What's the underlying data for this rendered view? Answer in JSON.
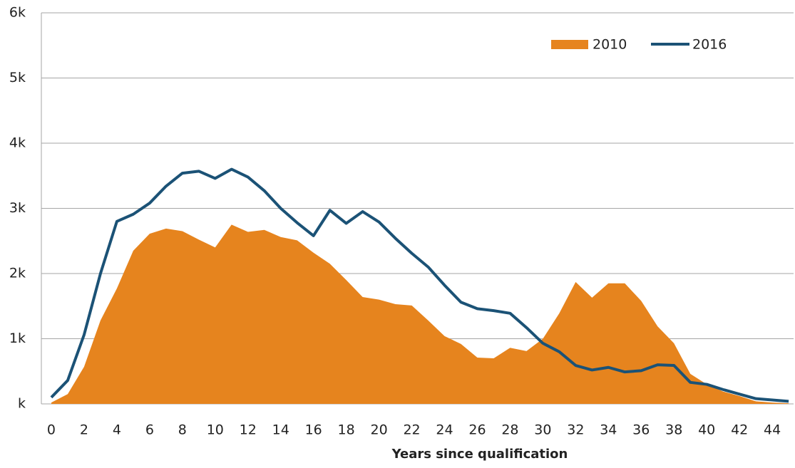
{
  "chart_data": {
    "type": "line",
    "x_label": "Years since qualification",
    "x": [
      0,
      1,
      2,
      3,
      4,
      5,
      6,
      7,
      8,
      9,
      10,
      11,
      12,
      13,
      14,
      15,
      16,
      17,
      18,
      19,
      20,
      21,
      22,
      23,
      24,
      25,
      26,
      27,
      28,
      29,
      30,
      31,
      32,
      33,
      34,
      35,
      36,
      37,
      38,
      39,
      40,
      41,
      42,
      43,
      44,
      45
    ],
    "series": [
      {
        "name": "2010",
        "type": "area",
        "color": "#e6841e",
        "values": [
          20,
          150,
          570,
          1280,
          1770,
          2350,
          2610,
          2690,
          2650,
          2520,
          2400,
          2750,
          2640,
          2670,
          2560,
          2510,
          2320,
          2150,
          1900,
          1640,
          1600,
          1530,
          1510,
          1280,
          1040,
          920,
          710,
          700,
          860,
          810,
          1000,
          1390,
          1870,
          1630,
          1850,
          1850,
          1580,
          1190,
          930,
          460,
          300,
          190,
          120,
          40,
          20,
          10
        ]
      },
      {
        "name": "2016",
        "type": "line",
        "color": "#1b5276",
        "values": [
          100,
          360,
          1060,
          2000,
          2800,
          2910,
          3080,
          3340,
          3540,
          3570,
          3460,
          3600,
          3480,
          3270,
          3000,
          2780,
          2580,
          2970,
          2770,
          2950,
          2790,
          2540,
          2310,
          2100,
          1820,
          1560,
          1460,
          1430,
          1390,
          1170,
          930,
          800,
          590,
          520,
          560,
          490,
          510,
          600,
          590,
          330,
          300,
          220,
          150,
          80,
          60,
          40
        ]
      }
    ],
    "xlim": [
      -1,
      45.3
    ],
    "xticks": [
      0,
      2,
      4,
      6,
      8,
      10,
      12,
      14,
      16,
      18,
      20,
      22,
      24,
      26,
      28,
      30,
      32,
      34,
      36,
      38,
      40,
      42,
      44
    ],
    "ylim": [
      0,
      6000
    ],
    "yticks": [
      {
        "value": 0,
        "label": "k"
      },
      {
        "value": 1000,
        "label": "1k"
      },
      {
        "value": 2000,
        "label": "2k"
      },
      {
        "value": 3000,
        "label": "3k"
      },
      {
        "value": 4000,
        "label": "4k"
      },
      {
        "value": 5000,
        "label": "5k"
      },
      {
        "value": 6000,
        "label": "6k"
      }
    ],
    "grid": true,
    "legend": "top-right"
  }
}
